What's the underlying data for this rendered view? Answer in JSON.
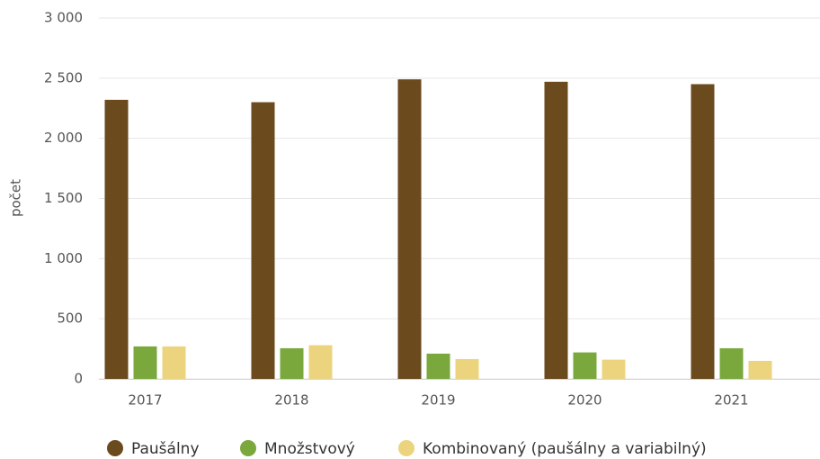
{
  "chart_data": {
    "type": "bar",
    "y_axis_label": "počet",
    "categories": [
      "2017",
      "2018",
      "2019",
      "2020",
      "2021"
    ],
    "series": [
      {
        "name": "Paušálny",
        "color": "#6b4a1e",
        "values": [
          2320,
          2300,
          2490,
          2470,
          2450
        ]
      },
      {
        "name": "Množstvový",
        "color": "#7aa83c",
        "values": [
          270,
          255,
          210,
          220,
          255
        ]
      },
      {
        "name": "Kombinovaný (paušálny a variabilný)",
        "color": "#ecd47f",
        "values": [
          270,
          280,
          165,
          160,
          150
        ]
      }
    ],
    "ylim": [
      0,
      3000
    ],
    "yticks": [
      0,
      500,
      {
        "value": 1000,
        "label": "1 000"
      },
      {
        "value": 1500,
        "label": "1 500"
      },
      {
        "value": 2000,
        "label": "2 000"
      },
      {
        "value": 2500,
        "label": "2 500"
      },
      {
        "value": 3000,
        "label": "3 000"
      }
    ],
    "grid": true,
    "legend": "bottom"
  }
}
